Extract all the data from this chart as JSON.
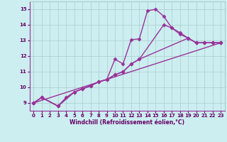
{
  "background_color": "#cceef0",
  "grid_color": "#aacccc",
  "line_color": "#993399",
  "marker": "D",
  "markersize": 2.5,
  "linewidth": 1.0,
  "xlabel": "Windchill (Refroidissement éolien,°C)",
  "xlabel_color": "#660066",
  "tick_color": "#660066",
  "xlim": [
    -0.5,
    23.5
  ],
  "ylim": [
    8.5,
    15.5
  ],
  "yticks": [
    9,
    10,
    11,
    12,
    13,
    14,
    15
  ],
  "xticks": [
    0,
    1,
    2,
    3,
    4,
    5,
    6,
    7,
    8,
    9,
    10,
    11,
    12,
    13,
    14,
    15,
    16,
    17,
    18,
    19,
    20,
    21,
    22,
    23
  ],
  "lines": [
    {
      "x": [
        0,
        1,
        3,
        4,
        5,
        6,
        7,
        8,
        9,
        10,
        11,
        12,
        13,
        14,
        15,
        16,
        17,
        18,
        19,
        20,
        21,
        22,
        23
      ],
      "y": [
        9.0,
        9.35,
        8.8,
        9.35,
        9.7,
        9.9,
        10.1,
        10.35,
        10.5,
        11.8,
        11.5,
        13.05,
        13.1,
        14.9,
        15.0,
        14.55,
        13.8,
        13.4,
        13.15,
        12.85,
        12.85,
        12.85,
        12.85
      ]
    },
    {
      "x": [
        0,
        1,
        3,
        5,
        6,
        7,
        8,
        9,
        10,
        11,
        12,
        13,
        16,
        17,
        18,
        19,
        20,
        21,
        22,
        23
      ],
      "y": [
        9.0,
        9.35,
        8.8,
        9.7,
        9.9,
        10.1,
        10.35,
        10.5,
        10.8,
        11.0,
        11.5,
        11.8,
        14.0,
        13.8,
        13.5,
        13.15,
        12.85,
        12.85,
        12.85,
        12.85
      ]
    },
    {
      "x": [
        0,
        1,
        3,
        5,
        6,
        7,
        8,
        9,
        10,
        11,
        12,
        13,
        19,
        20,
        21,
        22,
        23
      ],
      "y": [
        9.0,
        9.35,
        8.8,
        9.7,
        9.9,
        10.1,
        10.35,
        10.5,
        10.8,
        11.0,
        11.5,
        11.8,
        13.15,
        12.85,
        12.85,
        12.85,
        12.85
      ]
    },
    {
      "x": [
        0,
        23
      ],
      "y": [
        9.0,
        12.85
      ]
    }
  ]
}
